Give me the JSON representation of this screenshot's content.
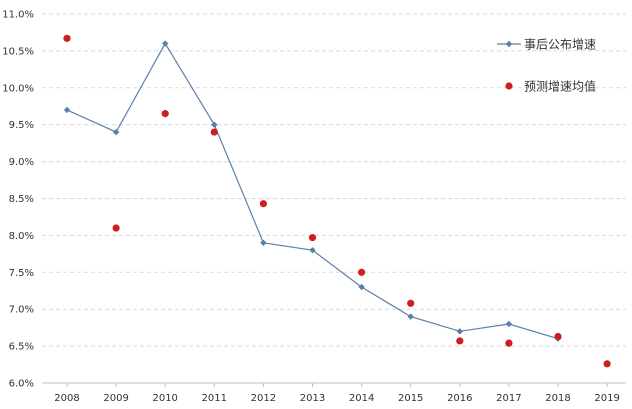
{
  "chart_data": {
    "type": "line",
    "title": "",
    "xlabel": "",
    "ylabel": "",
    "categories": [
      "2008",
      "2009",
      "2010",
      "2011",
      "2012",
      "2013",
      "2014",
      "2015",
      "2016",
      "2017",
      "2018",
      "2019"
    ],
    "ylim": [
      6.0,
      11.0
    ],
    "y_ticks": [
      "6.0%",
      "6.5%",
      "7.0%",
      "7.5%",
      "8.0%",
      "8.5%",
      "9.0%",
      "9.5%",
      "10.0%",
      "10.5%",
      "11.0%"
    ],
    "grid": true,
    "legend_position": "top-right",
    "series": [
      {
        "name": "事后公布增速",
        "kind": "line-markers",
        "color": "#5b7fa8",
        "values": [
          9.7,
          9.4,
          10.6,
          9.5,
          7.9,
          7.8,
          7.3,
          6.9,
          6.7,
          6.8,
          6.6,
          null
        ]
      },
      {
        "name": "预测增速均值",
        "kind": "scatter",
        "color": "#cc1f1f",
        "values": [
          10.67,
          8.1,
          9.65,
          9.4,
          8.43,
          7.97,
          7.5,
          7.08,
          6.57,
          6.54,
          6.63,
          6.26
        ]
      }
    ]
  }
}
